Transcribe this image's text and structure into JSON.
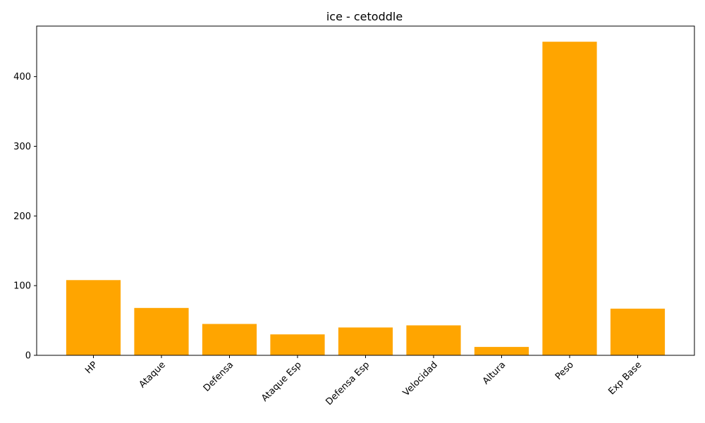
{
  "chart_data": {
    "type": "bar",
    "title": "ice - cetoddle",
    "xlabel": "",
    "ylabel": "",
    "categories": [
      "HP",
      "Ataque",
      "Defensa",
      "Ataque Esp",
      "Defensa Esp",
      "Velocidad",
      "Altura",
      "Peso",
      "Exp Base"
    ],
    "values": [
      108,
      68,
      45,
      30,
      40,
      43,
      12,
      450,
      67
    ],
    "ylim": [
      0,
      472.5
    ],
    "yticks": [
      0,
      100,
      200,
      300,
      400
    ],
    "bar_color": "#ffa500",
    "grid": false,
    "legend": "none",
    "xtick_rotation": 45
  }
}
